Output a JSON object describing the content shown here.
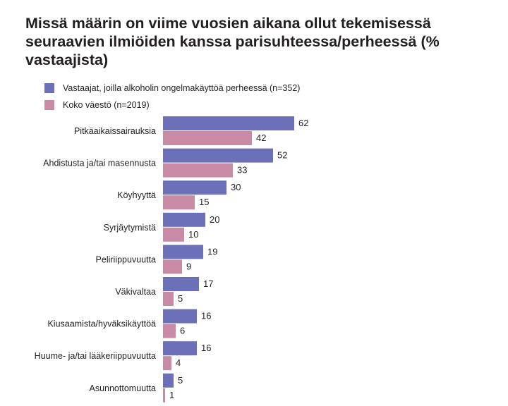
{
  "chart_data": {
    "type": "bar",
    "orientation": "horizontal",
    "title": "Missä määrin on viime vuosien aikana ollut tekemisessä seuraavien ilmiöiden kanssa parisuhteessa/perheessä (% vastaajista)",
    "categories": [
      "Pitkäaikaissairauksia",
      "Ahdistusta ja/tai masennusta",
      "Köyhyyttä",
      "Syrjäytymistä",
      "Peliriippuvuutta",
      "Väkivaltaa",
      "Kiusaamista/hyväksikäyttöä",
      "Huume- ja/tai lääkeriippuvuutta",
      "Asunnottomuutta"
    ],
    "series": [
      {
        "name": "Vastaajat, joilla alkoholin ongelmakäyttöä perheessä (n=352)",
        "color": "#6b70b8",
        "values": [
          62,
          52,
          30,
          20,
          19,
          17,
          16,
          16,
          5
        ]
      },
      {
        "name": "Koko väestö (n=2019)",
        "color": "#c98aa6",
        "values": [
          42,
          33,
          15,
          10,
          9,
          5,
          6,
          4,
          1
        ]
      }
    ],
    "data_labels": true,
    "grid": false,
    "legend_position": "top-left"
  }
}
